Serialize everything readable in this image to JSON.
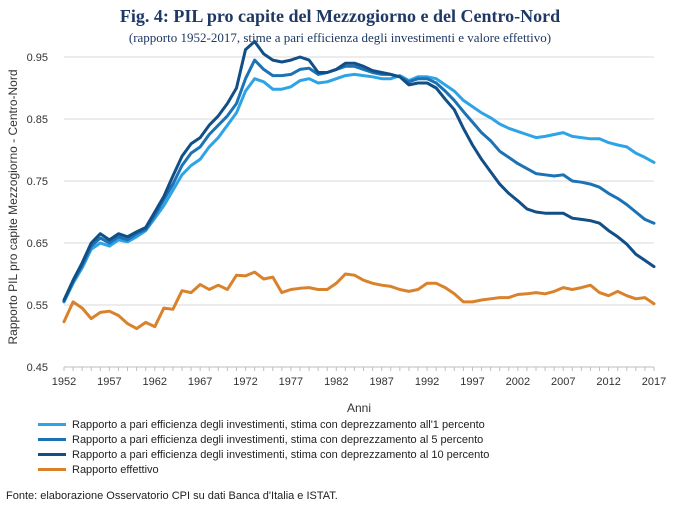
{
  "chart_data": {
    "type": "line",
    "title": "Fig. 4: PIL pro capite del Mezzogiorno e del Centro-Nord",
    "subtitle": "(rapporto 1952-2017, stime a pari efficienza degli investimenti e valore effettivo)",
    "xlabel": "Anni",
    "ylabel": "Rapporto PIL pro capite Mezzogiorno - Centro-Nord",
    "xlim": [
      1952,
      2017
    ],
    "ylim": [
      0.45,
      0.95
    ],
    "x_ticks": [
      "1952",
      "1957",
      "1962",
      "1967",
      "1972",
      "1977",
      "1982",
      "1987",
      "1992",
      "1997",
      "2002",
      "2007",
      "2012",
      "2017"
    ],
    "y_ticks": [
      "0.45",
      "0.55",
      "0.65",
      "0.75",
      "0.85",
      "0.95"
    ],
    "grid": "horizontal",
    "legend_position": "bottom",
    "x": [
      1952,
      1953,
      1954,
      1955,
      1956,
      1957,
      1958,
      1959,
      1960,
      1961,
      1962,
      1963,
      1964,
      1965,
      1966,
      1967,
      1968,
      1969,
      1970,
      1971,
      1972,
      1973,
      1974,
      1975,
      1976,
      1977,
      1978,
      1979,
      1980,
      1981,
      1982,
      1983,
      1984,
      1985,
      1986,
      1987,
      1988,
      1989,
      1990,
      1991,
      1992,
      1993,
      1994,
      1995,
      1996,
      1997,
      1998,
      1999,
      2000,
      2001,
      2002,
      2003,
      2004,
      2005,
      2006,
      2007,
      2008,
      2009,
      2010,
      2011,
      2012,
      2013,
      2014,
      2015,
      2016,
      2017
    ],
    "series": [
      {
        "name": "Rapporto a pari efficienza degli investimenti, stima con deprezzamento all'1 percento",
        "color": "#2ea3e6",
        "values": [
          0.555,
          0.585,
          0.61,
          0.64,
          0.65,
          0.645,
          0.655,
          0.652,
          0.66,
          0.67,
          0.69,
          0.71,
          0.735,
          0.76,
          0.775,
          0.785,
          0.805,
          0.82,
          0.84,
          0.86,
          0.895,
          0.915,
          0.91,
          0.898,
          0.898,
          0.902,
          0.912,
          0.915,
          0.908,
          0.91,
          0.915,
          0.92,
          0.922,
          0.92,
          0.918,
          0.915,
          0.915,
          0.92,
          0.912,
          0.918,
          0.918,
          0.915,
          0.905,
          0.895,
          0.88,
          0.87,
          0.86,
          0.852,
          0.842,
          0.835,
          0.83,
          0.825,
          0.82,
          0.822,
          0.825,
          0.828,
          0.822,
          0.82,
          0.818,
          0.818,
          0.812,
          0.808,
          0.805,
          0.795,
          0.788,
          0.78
        ]
      },
      {
        "name": "Rapporto a pari efficienza degli investimenti, stima con deprezzamento al 5 percento",
        "color": "#1b72b5",
        "values": [
          0.556,
          0.588,
          0.614,
          0.645,
          0.658,
          0.65,
          0.66,
          0.655,
          0.665,
          0.672,
          0.695,
          0.72,
          0.745,
          0.775,
          0.795,
          0.805,
          0.825,
          0.84,
          0.855,
          0.875,
          0.915,
          0.945,
          0.93,
          0.92,
          0.92,
          0.922,
          0.93,
          0.932,
          0.922,
          0.925,
          0.93,
          0.935,
          0.935,
          0.93,
          0.925,
          0.922,
          0.922,
          0.918,
          0.91,
          0.915,
          0.915,
          0.908,
          0.895,
          0.88,
          0.862,
          0.845,
          0.828,
          0.815,
          0.798,
          0.788,
          0.778,
          0.77,
          0.762,
          0.76,
          0.758,
          0.76,
          0.75,
          0.748,
          0.745,
          0.74,
          0.73,
          0.722,
          0.712,
          0.7,
          0.688,
          0.682
        ]
      },
      {
        "name": "Rapporto a pari efficienza degli investimenti, stima con deprezzamento al 10 percento",
        "color": "#124f86",
        "values": [
          0.558,
          0.59,
          0.618,
          0.65,
          0.665,
          0.655,
          0.665,
          0.66,
          0.668,
          0.675,
          0.7,
          0.725,
          0.758,
          0.79,
          0.81,
          0.82,
          0.84,
          0.855,
          0.875,
          0.9,
          0.962,
          0.975,
          0.955,
          0.945,
          0.942,
          0.945,
          0.95,
          0.945,
          0.925,
          0.925,
          0.93,
          0.94,
          0.94,
          0.935,
          0.928,
          0.925,
          0.922,
          0.918,
          0.905,
          0.908,
          0.908,
          0.9,
          0.882,
          0.865,
          0.835,
          0.808,
          0.785,
          0.765,
          0.745,
          0.73,
          0.718,
          0.705,
          0.7,
          0.698,
          0.698,
          0.698,
          0.69,
          0.688,
          0.686,
          0.682,
          0.67,
          0.66,
          0.648,
          0.632,
          0.622,
          0.612
        ]
      },
      {
        "name": "Rapporto effettivo",
        "color": "#d9822b",
        "values": [
          0.523,
          0.555,
          0.545,
          0.528,
          0.538,
          0.54,
          0.533,
          0.52,
          0.512,
          0.522,
          0.515,
          0.545,
          0.543,
          0.573,
          0.57,
          0.583,
          0.575,
          0.582,
          0.575,
          0.598,
          0.597,
          0.603,
          0.592,
          0.595,
          0.57,
          0.575,
          0.577,
          0.578,
          0.575,
          0.575,
          0.585,
          0.6,
          0.598,
          0.59,
          0.585,
          0.582,
          0.58,
          0.575,
          0.572,
          0.575,
          0.585,
          0.585,
          0.578,
          0.568,
          0.555,
          0.555,
          0.558,
          0.56,
          0.562,
          0.562,
          0.567,
          0.568,
          0.57,
          0.568,
          0.572,
          0.578,
          0.575,
          0.578,
          0.582,
          0.57,
          0.565,
          0.572,
          0.565,
          0.56,
          0.562,
          0.552
        ]
      }
    ]
  },
  "source_note": "Fonte: elaborazione Osservatorio CPI su dati Banca d'Italia e ISTAT."
}
